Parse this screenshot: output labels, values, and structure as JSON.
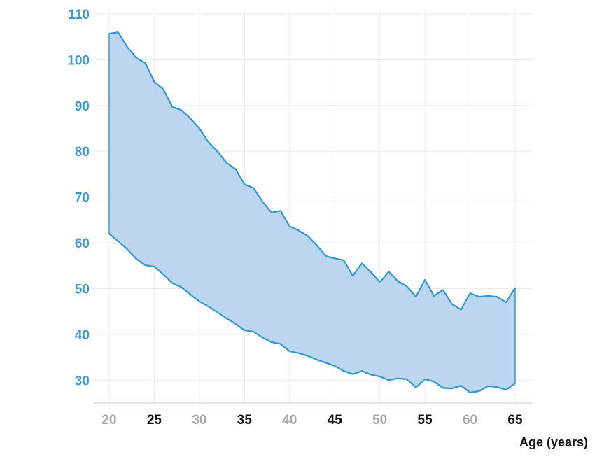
{
  "chart_data": {
    "type": "area",
    "title": "",
    "xlabel": "Age (years)",
    "ylabel": "",
    "xlim": [
      20,
      65
    ],
    "ylim": [
      25,
      110
    ],
    "grid": true,
    "x_ticks": [
      {
        "label": "20",
        "value": 20,
        "color": "#a8a8a8"
      },
      {
        "label": "25",
        "value": 25,
        "color": "#111111"
      },
      {
        "label": "30",
        "value": 30,
        "color": "#a8a8a8"
      },
      {
        "label": "35",
        "value": 35,
        "color": "#111111"
      },
      {
        "label": "40",
        "value": 40,
        "color": "#a8a8a8"
      },
      {
        "label": "45",
        "value": 45,
        "color": "#111111"
      },
      {
        "label": "50",
        "value": 50,
        "color": "#a8a8a8"
      },
      {
        "label": "55",
        "value": 55,
        "color": "#111111"
      },
      {
        "label": "60",
        "value": 60,
        "color": "#a8a8a8"
      },
      {
        "label": "65",
        "value": 65,
        "color": "#111111"
      }
    ],
    "y_ticks": [
      {
        "label": "30",
        "value": 30
      },
      {
        "label": "40",
        "value": 40
      },
      {
        "label": "50",
        "value": 50
      },
      {
        "label": "60",
        "value": 60
      },
      {
        "label": "70",
        "value": 70
      },
      {
        "label": "80",
        "value": 80
      },
      {
        "label": "90",
        "value": 90
      },
      {
        "label": "100",
        "value": 100
      },
      {
        "label": "110",
        "value": 110
      }
    ],
    "x": [
      20,
      21,
      22,
      23,
      24,
      25,
      26,
      27,
      28,
      29,
      30,
      31,
      32,
      33,
      34,
      35,
      36,
      37,
      38,
      39,
      40,
      41,
      42,
      43,
      44,
      45,
      46,
      47,
      48,
      49,
      50,
      51,
      52,
      53,
      54,
      55,
      56,
      57,
      58,
      59,
      60,
      61,
      62,
      63,
      64,
      65
    ],
    "series": [
      {
        "values": [
          105.7,
          106.0,
          102.8,
          100.4,
          99.3,
          95.2,
          93.6,
          89.7,
          89.0,
          87.2,
          85.0,
          82.0,
          80.0,
          77.5,
          76.1,
          72.8,
          72.0,
          69.0,
          66.6,
          67.0,
          63.6,
          62.7,
          61.5,
          59.5,
          57.1,
          56.6,
          56.2,
          52.8,
          55.5,
          53.6,
          51.4,
          53.7,
          51.6,
          50.5,
          48.2,
          51.9,
          48.4,
          49.7,
          46.6,
          45.4,
          49.0,
          48.2,
          48.4,
          48.2,
          47.0,
          50.2
        ]
      },
      {
        "values": [
          62.0,
          60.3,
          58.6,
          56.5,
          55.1,
          54.8,
          53.1,
          51.2,
          50.3,
          48.7,
          47.2,
          46.1,
          44.8,
          43.5,
          42.3,
          40.9,
          40.6,
          39.3,
          38.3,
          37.9,
          36.3,
          35.9,
          35.3,
          34.5,
          33.8,
          33.1,
          32.0,
          31.3,
          32.0,
          31.2,
          30.8,
          30.0,
          30.4,
          30.2,
          28.4,
          30.2,
          29.7,
          28.3,
          28.2,
          28.8,
          27.3,
          27.6,
          28.7,
          28.5,
          27.9,
          29.3
        ]
      }
    ],
    "colors": {
      "line": "#2f97d8",
      "fill": "#bcd6ef",
      "y_tick": "#3a9ad9"
    }
  }
}
